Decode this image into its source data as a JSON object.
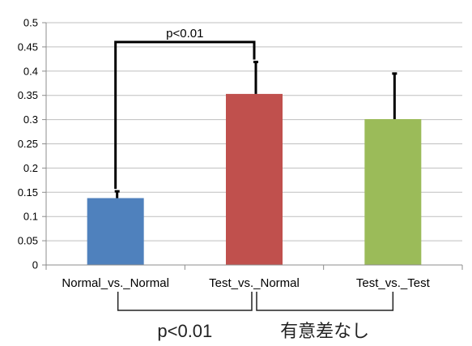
{
  "chart_data": {
    "type": "bar",
    "title": "",
    "xlabel": "",
    "ylabel": "",
    "ylim": [
      0,
      0.5
    ],
    "yticks": [
      0,
      0.05,
      0.1,
      0.15,
      0.2,
      0.25,
      0.3,
      0.35,
      0.4,
      0.45,
      0.5
    ],
    "ytick_labels": [
      "0",
      "0.05",
      "0.1",
      "0.15",
      "0.2",
      "0.25",
      "0.3",
      "0.35",
      "0.4",
      "0.45",
      "0.5"
    ],
    "grid": true,
    "legend": "none",
    "categories": [
      "Normal_vs._Normal",
      "Test_vs._Normal",
      "Test_vs._Test"
    ],
    "values": [
      0.138,
      0.353,
      0.301
    ],
    "error_upper": [
      0.152,
      0.419,
      0.395
    ],
    "colors": [
      "#4f81bd",
      "#c0504d",
      "#9bbb59"
    ],
    "top_annotation": {
      "text": "p<0.01",
      "from_category": 0,
      "to_category": 1,
      "bracket_level": 0.46
    },
    "bottom_annotations": [
      {
        "text": "p<0.01",
        "from_category": 0,
        "to_category": 1
      },
      {
        "text": "有意差なし",
        "from_category": 1,
        "to_category": 2
      }
    ]
  }
}
